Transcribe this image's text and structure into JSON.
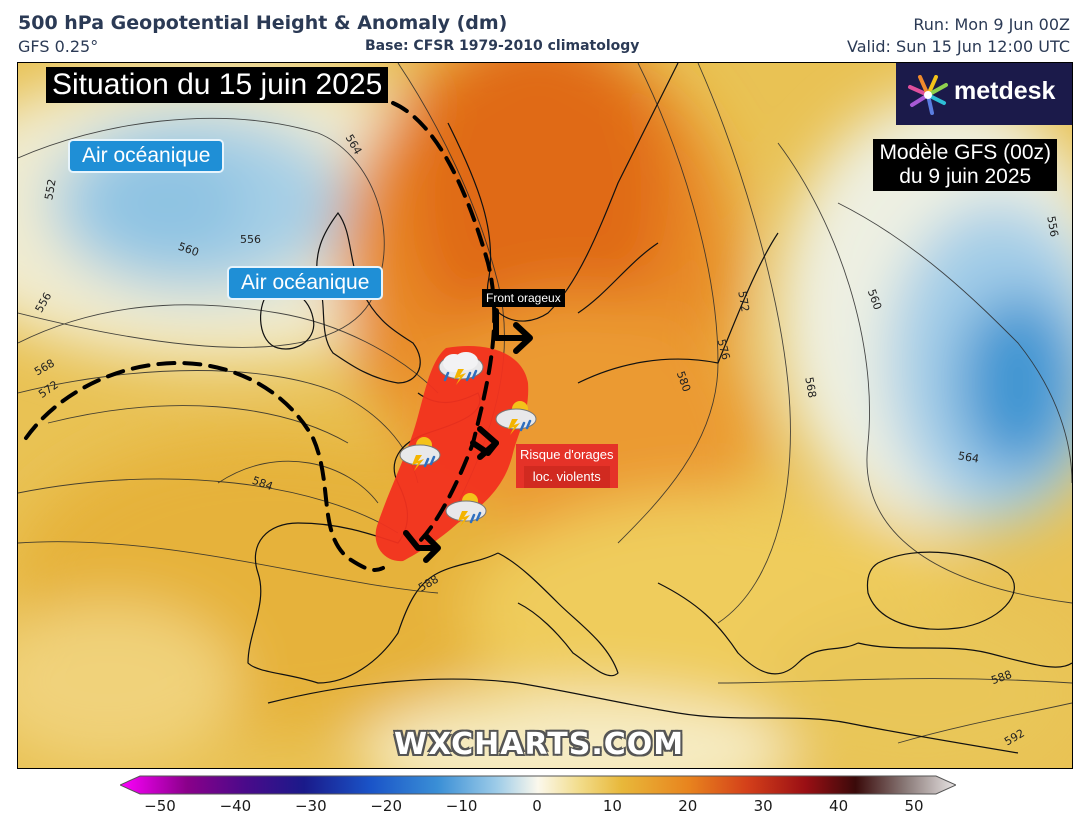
{
  "header": {
    "title": "500 hPa Geopotential Height & Anomaly (dm)",
    "model": "GFS 0.25°",
    "base": "Base: CFSR 1979-2010 climatology",
    "run": "Run: Mon 9 Jun 00Z",
    "valid": "Valid: Sun 15 Jun 12:00 UTC"
  },
  "map": {
    "situation_title": "Situation du 15 juin 2025",
    "ocean_air_label_1": "Air océanique",
    "ocean_air_label_2": "Air océanique",
    "model_box_line1": "Modèle GFS (00z)",
    "model_box_line2": "du 9 juin 2025",
    "logo_text": "metdesk",
    "front_label": "Front orageux",
    "risk_line1": "Risque d'orages",
    "risk_line2": "loc. violents",
    "watermark": "WXCHARTS.COM",
    "contour_labels": [
      "552",
      "564",
      "556",
      "560",
      "556",
      "568",
      "572",
      "584",
      "588",
      "572",
      "576",
      "580",
      "568",
      "564",
      "556",
      "560",
      "588",
      "592"
    ],
    "icons": [
      "storm-cloud-icon",
      "sun-storm-cloud-icon",
      "arrow-icon",
      "front-line-icon"
    ]
  },
  "colorbar": {
    "ticks": [
      "−50",
      "−40",
      "−30",
      "−20",
      "−10",
      "0",
      "10",
      "20",
      "30",
      "40",
      "50"
    ],
    "min": -50,
    "max": 50,
    "unit": "dm"
  },
  "colors": {
    "cold_anomaly": "#2f8fd1",
    "warm_anomaly": "#e2701a",
    "neutral": "#f4e9b8",
    "risk_zone": "#f2311f",
    "logo_bg": "#1b1a4a"
  }
}
